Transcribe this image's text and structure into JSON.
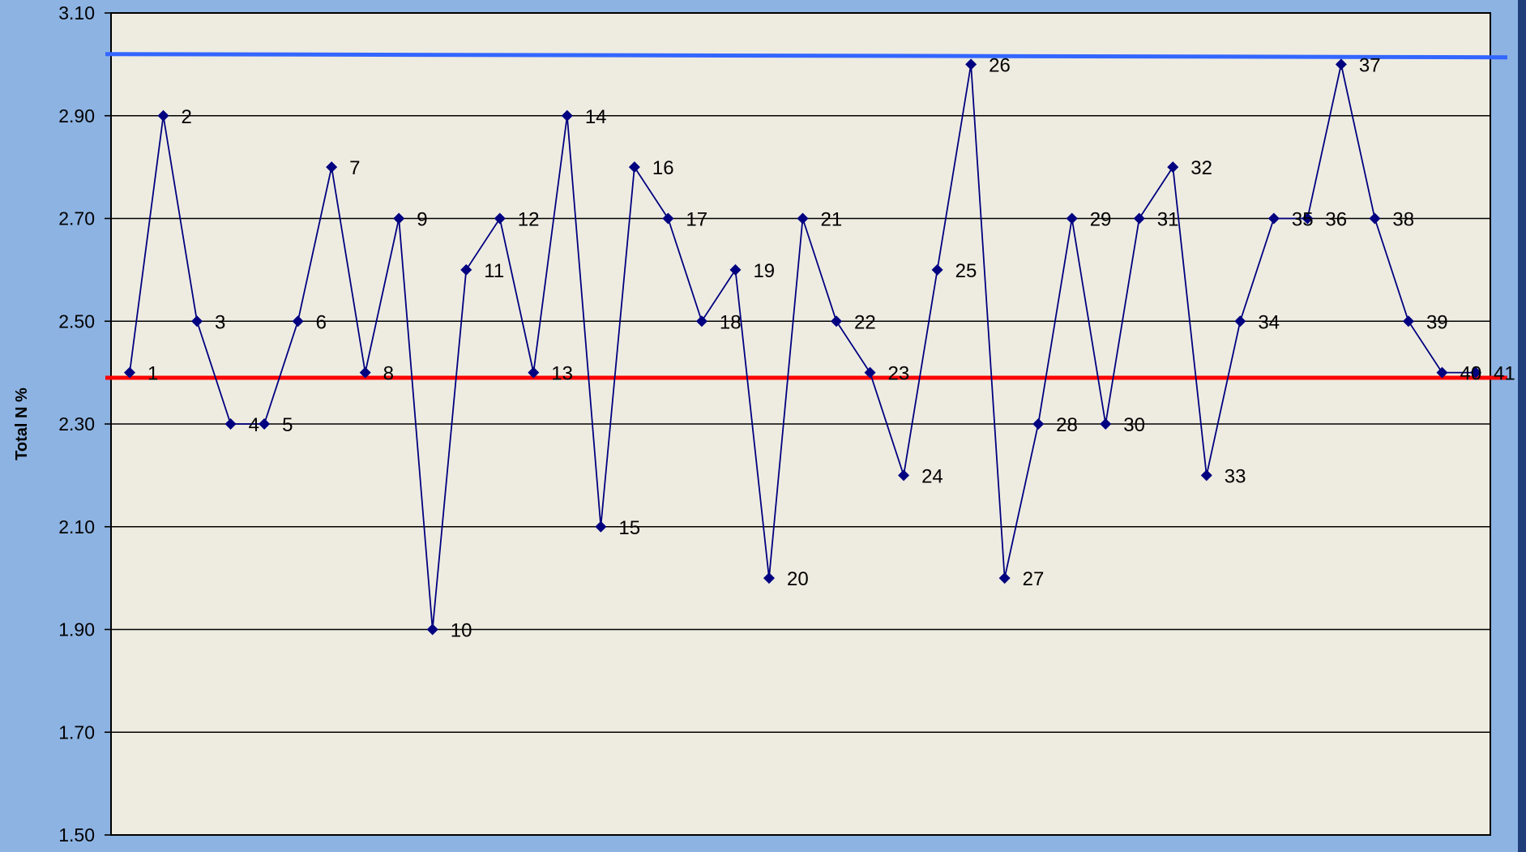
{
  "chart_data": {
    "type": "line",
    "title": "",
    "xlabel": "",
    "ylabel": "Total N %",
    "ylim": [
      1.5,
      3.1
    ],
    "yticks": [
      "1.50",
      "1.70",
      "1.90",
      "2.10",
      "2.30",
      "2.50",
      "2.70",
      "2.90",
      "3.10"
    ],
    "grid": true,
    "legend": "none",
    "series": [
      {
        "x": [
          1,
          2,
          3,
          4,
          5,
          6,
          7,
          8,
          9,
          10,
          11,
          12,
          13,
          14,
          15,
          16,
          17,
          18,
          19,
          20,
          21,
          22,
          23,
          24,
          25,
          26,
          27,
          28,
          29,
          30,
          31,
          32,
          33,
          34,
          35,
          36,
          37,
          38,
          39,
          40,
          41
        ],
        "values": [
          2.4,
          2.9,
          2.5,
          2.3,
          2.3,
          2.5,
          2.8,
          2.4,
          2.7,
          1.9,
          2.6,
          2.7,
          2.4,
          2.9,
          2.1,
          2.8,
          2.7,
          2.5,
          2.6,
          2.0,
          2.7,
          2.5,
          2.4,
          2.2,
          2.6,
          3.0,
          2.0,
          2.3,
          2.7,
          2.3,
          2.7,
          2.8,
          2.2,
          2.5,
          2.7,
          2.7,
          3.0,
          2.7,
          2.5,
          2.4,
          2.4
        ],
        "point_labels": [
          "1",
          "2",
          "3",
          "4",
          "5",
          "6",
          "7",
          "8",
          "9",
          "10",
          "11",
          "12",
          "13",
          "14",
          "15",
          "16",
          "17",
          "18",
          "19",
          "20",
          "21",
          "22",
          "23",
          "24",
          "25",
          "26",
          "27",
          "28",
          "29",
          "30",
          "31",
          "32",
          "33",
          "34",
          "35",
          "36",
          "37",
          "38",
          "39",
          "40",
          "41"
        ],
        "color": "#000080"
      }
    ],
    "reference_lines": [
      {
        "value": 3.02,
        "color": "#3366ff"
      },
      {
        "value": 2.39,
        "color": "#ff0000"
      }
    ],
    "colors": {
      "background": "#8db3e2",
      "plot_area": "#eeece1",
      "grid": "#000000",
      "series": "#000080"
    }
  }
}
